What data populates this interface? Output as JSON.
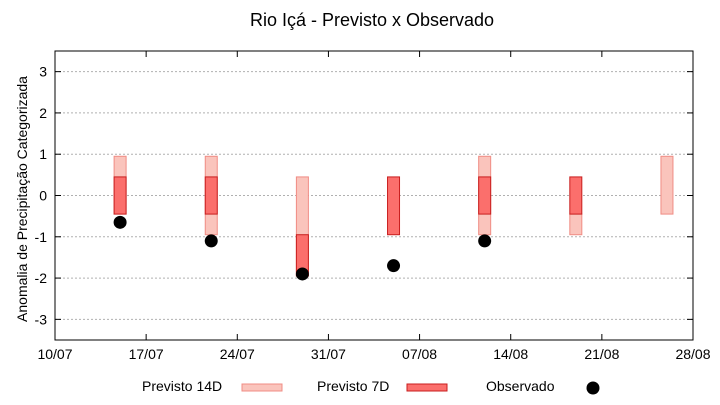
{
  "chart_data": {
    "type": "range-bar",
    "title": "Rio Içá - Previsto x Observado",
    "ylabel": "Anomalia de Precipitação Categorizada",
    "xlabel": "",
    "ylim": [
      -3.5,
      3.5
    ],
    "yticks": [
      3,
      2,
      1,
      0,
      -1,
      -2,
      -3
    ],
    "ytick_labels": [
      "3",
      "2",
      "1",
      "0",
      "-1",
      "-2",
      "-3"
    ],
    "xlim": [
      "2023-07-10",
      "2023-08-28"
    ],
    "xticks": [
      "2023-07-10",
      "2023-07-17",
      "2023-07-24",
      "2023-07-31",
      "2023-08-07",
      "2023-08-14",
      "2023-08-21",
      "2023-08-28"
    ],
    "xtick_labels": [
      "10/07",
      "17/07",
      "24/07",
      "31/07",
      "07/08",
      "14/08",
      "21/08",
      "28/08"
    ],
    "grid": true,
    "legend_position": "bottom",
    "colors": {
      "previsto_14d_fill": "#fac4bc",
      "previsto_14d_stroke": "#f08c84",
      "previsto_7d_fill": "#fb6f6c",
      "previsto_7d_stroke": "#c81e1e",
      "observado": "#000000",
      "grid": "#b0b0b0"
    },
    "series": [
      {
        "name": "Previsto 14D",
        "kind": "range",
        "points": [
          {
            "x": "2023-07-15",
            "low": -0.45,
            "high": 0.95
          },
          {
            "x": "2023-07-22",
            "low": -0.95,
            "high": 0.95
          },
          {
            "x": "2023-07-29",
            "low": -1.95,
            "high": 0.45
          },
          {
            "x": "2023-08-12",
            "low": -0.95,
            "high": 0.95
          },
          {
            "x": "2023-08-19",
            "low": -0.95,
            "high": -0.45
          },
          {
            "x": "2023-08-26",
            "low": -0.45,
            "high": 0.95
          }
        ]
      },
      {
        "name": "Previsto 7D",
        "kind": "range",
        "points": [
          {
            "x": "2023-07-15",
            "low": -0.45,
            "high": 0.45
          },
          {
            "x": "2023-07-22",
            "low": -0.45,
            "high": 0.45
          },
          {
            "x": "2023-07-29",
            "low": -1.95,
            "high": -0.95
          },
          {
            "x": "2023-08-05",
            "low": -0.95,
            "high": 0.45
          },
          {
            "x": "2023-08-12",
            "low": -0.45,
            "high": 0.45
          },
          {
            "x": "2023-08-19",
            "low": -0.45,
            "high": 0.45
          }
        ]
      },
      {
        "name": "Observado",
        "kind": "point",
        "points": [
          {
            "x": "2023-07-15",
            "y": -0.65
          },
          {
            "x": "2023-07-22",
            "y": -1.1
          },
          {
            "x": "2023-07-29",
            "y": -1.9
          },
          {
            "x": "2023-08-05",
            "y": -1.7
          },
          {
            "x": "2023-08-12",
            "y": -1.1
          }
        ]
      }
    ]
  }
}
